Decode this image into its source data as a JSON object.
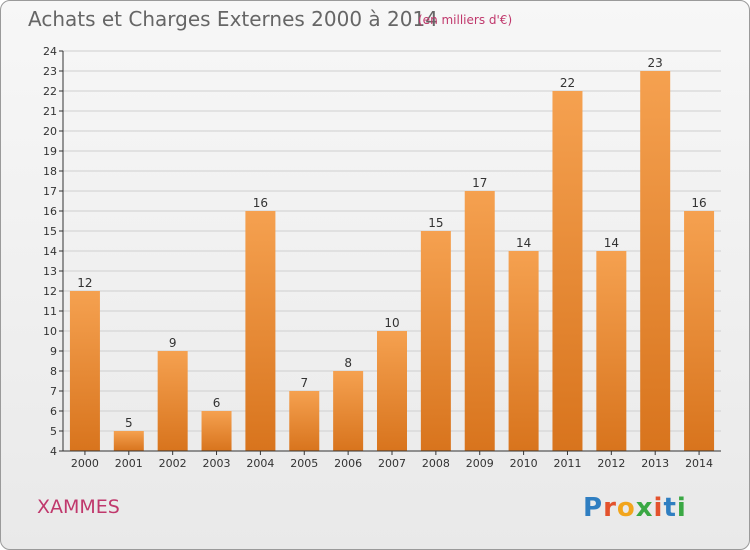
{
  "title": "Achats et Charges Externes 2000 à 2014",
  "subtitle": "(en milliers d'€)",
  "commune": "XAMMES",
  "logo": {
    "text": "Proxiti",
    "colors": [
      "#2f7ec1",
      "#e3522d",
      "#f2a51c",
      "#3aa844",
      "#e3522d",
      "#2f7ec1",
      "#3aa844"
    ]
  },
  "colors": {
    "bar_light": "#f5a150",
    "bar_dark": "#d8741d",
    "axis": "#333333",
    "grid": "#cfcfcf"
  },
  "chart_data": {
    "type": "bar",
    "title": "Achats et Charges Externes 2000 à 2014",
    "categories": [
      "2000",
      "2001",
      "2002",
      "2003",
      "2004",
      "2005",
      "2006",
      "2007",
      "2008",
      "2009",
      "2010",
      "2011",
      "2012",
      "2013",
      "2014"
    ],
    "values": [
      12,
      5,
      9,
      6,
      16,
      7,
      8,
      10,
      15,
      17,
      14,
      22,
      14,
      23,
      16
    ],
    "ylim": [
      4,
      24
    ],
    "yticks": [
      4,
      5,
      6,
      7,
      8,
      9,
      10,
      11,
      12,
      13,
      14,
      15,
      16,
      17,
      18,
      19,
      20,
      21,
      22,
      23,
      24
    ],
    "grid": true
  }
}
